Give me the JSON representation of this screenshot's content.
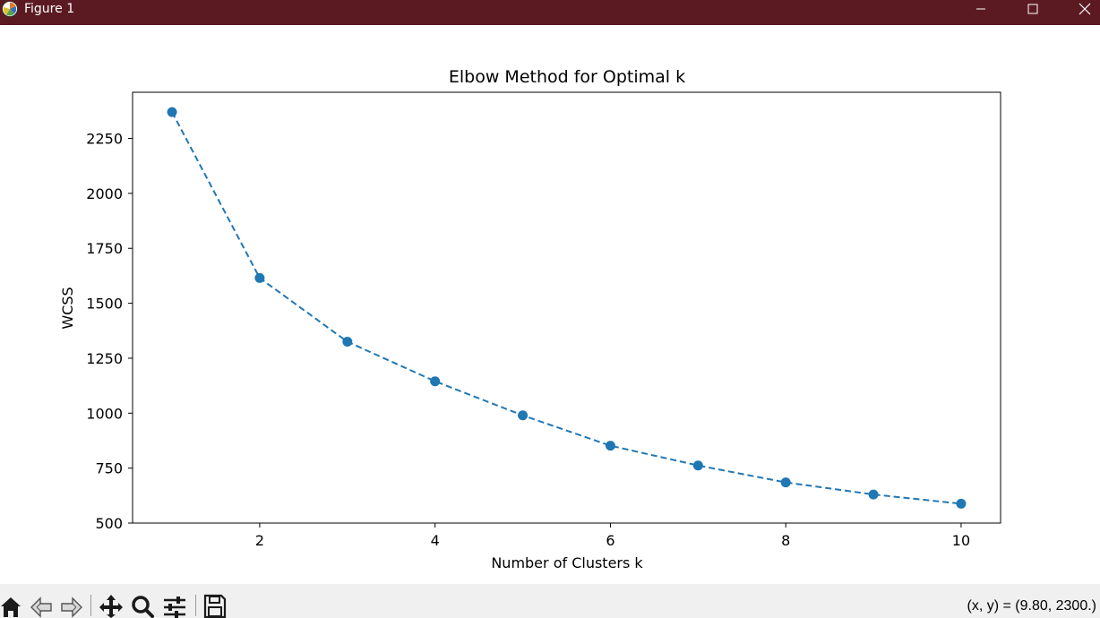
{
  "window": {
    "title": "Figure 1",
    "titlebar_color": "#5b1a22",
    "app_icon": "matplotlib-icon",
    "controls": {
      "minimize_icon": "minimize-icon",
      "maximize_icon": "maximize-icon",
      "close_icon": "close-icon"
    }
  },
  "chart_data": {
    "type": "line",
    "title": "Elbow Method for Optimal k",
    "xlabel": "Number of Clusters k",
    "ylabel": "WCSS",
    "x": [
      1,
      2,
      3,
      4,
      5,
      6,
      7,
      8,
      9,
      10
    ],
    "series": [
      {
        "values": [
          2370,
          1615,
          1325,
          1145,
          990,
          852,
          762,
          685,
          630,
          588
        ],
        "color": "#1f77b4",
        "line_style": "dashed",
        "marker": "circle"
      }
    ],
    "xticks": [
      "2",
      "4",
      "6",
      "8",
      "10"
    ],
    "yticks": [
      "500",
      "750",
      "1000",
      "1250",
      "1500",
      "1750",
      "2000",
      "2250"
    ],
    "xlim": [
      0.55,
      10.45
    ],
    "ylim": [
      500,
      2460
    ],
    "grid": false,
    "legend": "none"
  },
  "toolbar": {
    "buttons": [
      {
        "icon": "home-icon"
      },
      {
        "icon": "back-arrow-icon"
      },
      {
        "icon": "forward-arrow-icon"
      },
      {
        "icon": "pan-icon"
      },
      {
        "icon": "zoom-icon"
      },
      {
        "icon": "configure-subplots-icon"
      },
      {
        "icon": "save-icon"
      }
    ],
    "coordinates": "(x, y) = (9.80, 2300.)"
  }
}
